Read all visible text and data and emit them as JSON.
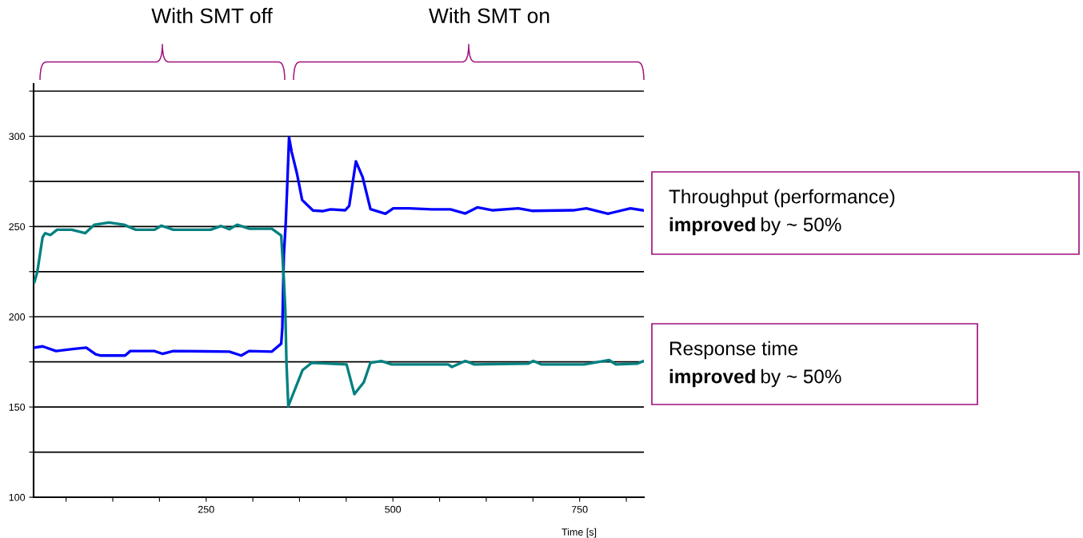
{
  "chart_data": {
    "type": "line",
    "xlabel": "Time [s]",
    "xlim": [
      19,
      836
    ],
    "xticks": [
      {
        "value": 62.5,
        "label": null
      },
      {
        "value": 125,
        "label": null
      },
      {
        "value": 187.5,
        "label": null
      },
      250,
      {
        "value": 312.5,
        "label": null
      },
      {
        "value": 375,
        "label": null
      },
      {
        "value": 437.5,
        "label": null
      },
      500,
      {
        "value": 562.5,
        "label": null
      },
      {
        "value": 625,
        "label": null
      },
      {
        "value": 687.5,
        "label": null
      },
      750,
      {
        "value": 812.5,
        "label": null
      }
    ],
    "ylim": [
      100,
      329
    ],
    "yticks": [
      100,
      {
        "value": 125,
        "label": null
      },
      150,
      {
        "value": 175,
        "label": null
      },
      200,
      {
        "value": 225,
        "label": null
      },
      250,
      {
        "value": 275,
        "label": null
      },
      300,
      {
        "value": 325,
        "label": null
      }
    ],
    "grid": "y",
    "legend": false,
    "marker": "none",
    "line_style": "solid",
    "annotations": [
      "With SMT off",
      "With SMT on",
      "Throughput (performance)\nimproved by ~ 50%",
      "Response time\nimproved by ~ 50%"
    ],
    "series": [
      {
        "color": "#0000ff",
        "x": [
          20,
          31,
          49,
          73.5,
          89.5,
          102,
          109,
          141.5,
          148.5,
          180.5,
          191.5,
          206,
          281,
          297,
          307.5,
          338,
          350.5,
          352,
          354,
          356.5,
          358.5,
          361,
          364.5,
          371.5,
          378.5,
          393,
          406,
          416.5,
          436,
          441.5,
          450.5,
          459.5,
          470,
          490,
          500.5,
          522,
          552,
          577,
          597,
          613,
          634,
          668,
          686,
          741.5,
          759,
          788,
          818,
          836
        ],
        "values": [
          182.9,
          183.6,
          181,
          182.2,
          182.9,
          179.2,
          178.5,
          178.5,
          181,
          181,
          179.5,
          181,
          180.7,
          178.5,
          181,
          180.7,
          185.1,
          194,
          233.8,
          251.5,
          272.1,
          299.4,
          291.3,
          279.5,
          264.7,
          258.9,
          258.5,
          259.5,
          259,
          261.4,
          286.1,
          277.3,
          259.6,
          257.1,
          260.1,
          260.1,
          259.5,
          259.5,
          257.2,
          260.6,
          259,
          260.1,
          258.7,
          259,
          260.1,
          257.1,
          260.1,
          258.9
        ]
      },
      {
        "color": "#008080",
        "x": [
          20,
          24,
          31,
          34.5,
          41.5,
          50.5,
          70,
          88,
          100.5,
          120,
          140,
          156,
          181,
          190,
          206,
          256,
          270,
          281,
          291.5,
          308,
          338,
          350.5,
          354,
          356,
          357.5,
          360,
          379,
          391.5,
          438,
          448.5,
          461,
          470,
          484.5,
          498.5,
          574,
          579,
          597,
          609,
          681,
          688,
          698.5,
          756,
          789.5,
          798.5,
          827,
          836
        ],
        "values": [
          219,
          224.9,
          244,
          246.3,
          245.3,
          248.2,
          248.2,
          246.3,
          251,
          252.2,
          251,
          248.2,
          248.2,
          250.5,
          248.2,
          248.2,
          250.3,
          248.5,
          251,
          248.8,
          248.8,
          245,
          221,
          203.5,
          174.8,
          150.5,
          170.4,
          174.5,
          173.6,
          157.1,
          163.7,
          174.5,
          175.5,
          173.6,
          173.6,
          172.2,
          175.5,
          173.6,
          174,
          175.5,
          173.6,
          173.6,
          176,
          173.6,
          174,
          175.5
        ]
      }
    ]
  }
}
